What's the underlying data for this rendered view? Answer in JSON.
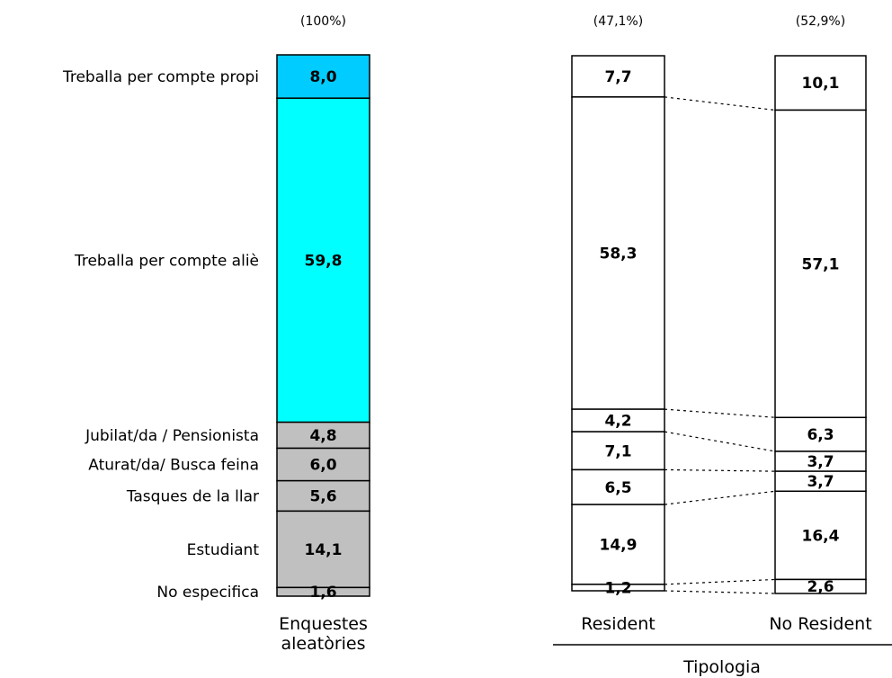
{
  "chart_data": {
    "type": "bar",
    "subtype": "stacked-100-columns",
    "categories": [
      "Treballa per compte propi",
      "Treballa per compte aliè",
      "Jubilat/da / Pensionista",
      "Aturat/da/ Busca feina",
      "Tasques de la llar",
      "Estudiant",
      "No especifica"
    ],
    "columns": [
      {
        "name": "Enquestes aleatòries",
        "name_lines": [
          "Enquestes",
          "aleatòries"
        ],
        "share_label": "(100%)",
        "values": [
          8.0,
          59.8,
          4.8,
          6.0,
          5.6,
          14.1,
          1.6
        ],
        "value_labels": [
          "8,0",
          "59,8",
          "4,8",
          "6,0",
          "5,6",
          "14,1",
          "1,6"
        ]
      },
      {
        "name": "Resident",
        "name_lines": [
          "Resident"
        ],
        "share_label": "(47,1%)",
        "values": [
          7.7,
          58.3,
          4.2,
          7.1,
          6.5,
          14.9,
          1.2
        ],
        "value_labels": [
          "7,7",
          "58,3",
          "4,2",
          "7,1",
          "6,5",
          "14,9",
          "1,2"
        ]
      },
      {
        "name": "No Resident",
        "name_lines": [
          "No Resident"
        ],
        "share_label": "(52,9%)",
        "values": [
          10.1,
          57.1,
          6.3,
          3.7,
          3.7,
          16.4,
          2.6
        ],
        "value_labels": [
          "10,1",
          "57,1",
          "6,3",
          "3,7",
          "3,7",
          "16,4",
          "2,6"
        ]
      }
    ],
    "group_label": "Tipologia",
    "segment_colors": [
      "#00ccff",
      "#00ffff",
      "#c0c0c0",
      "#c0c0c0",
      "#c0c0c0",
      "#c0c0c0",
      "#c0c0c0"
    ],
    "other_fill": "#ffffff",
    "stroke": "#000000",
    "connectors": "dotted"
  }
}
